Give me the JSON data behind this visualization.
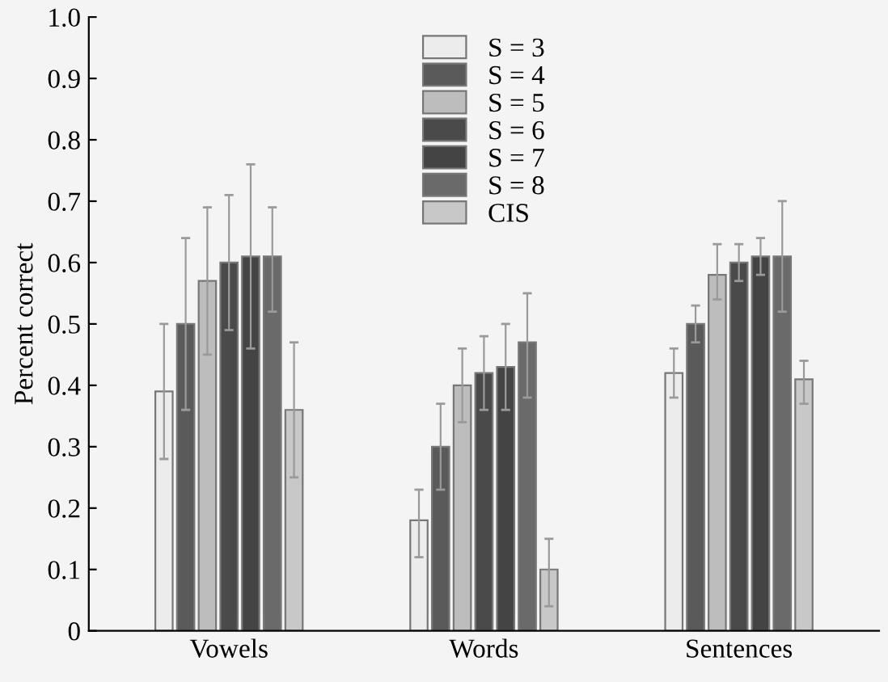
{
  "chart_data": {
    "type": "bar",
    "ylabel": "Percent correct",
    "categories": [
      "Vowels",
      "Words",
      "Sentences"
    ],
    "ylim": [
      0,
      1.0
    ],
    "yticks": [
      {
        "value": 0,
        "label": "0"
      },
      0.1,
      0.2,
      0.3,
      0.4,
      0.5,
      0.6,
      0.7,
      0.8,
      0.9,
      {
        "value": 1.0,
        "label": "1.0"
      }
    ],
    "grid": false,
    "legend": "top",
    "series": [
      {
        "name": "S = 3",
        "color": "#ececec",
        "values": [
          0.39,
          0.18,
          0.42
        ],
        "errors": [
          [
            0.28,
            0.5
          ],
          [
            0.12,
            0.23
          ],
          [
            0.38,
            0.46
          ]
        ]
      },
      {
        "name": "S = 4",
        "color": "#5a5a5a",
        "values": [
          0.5,
          0.3,
          0.5
        ],
        "errors": [
          [
            0.36,
            0.64
          ],
          0.07,
          0.03
        ]
      },
      {
        "name": "S = 5",
        "color": "#bdbdbd",
        "values": [
          0.57,
          0.4,
          0.58
        ],
        "errors": [
          [
            0.45,
            0.69
          ],
          [
            0.34,
            0.46
          ],
          [
            0.54,
            0.63
          ]
        ]
      },
      {
        "name": "S = 6",
        "color": "#4a4a4a",
        "values": [
          0.6,
          0.42,
          0.6
        ],
        "errors": [
          0.11,
          0.06,
          0.03
        ]
      },
      {
        "name": "S = 7",
        "color": "#444444",
        "values": [
          0.61,
          0.43,
          0.61
        ],
        "errors": [
          0.15,
          0.07,
          0.03
        ]
      },
      {
        "name": "S = 8",
        "color": "#6a6a6a",
        "values": [
          0.61,
          0.47,
          0.61
        ],
        "errors": [
          [
            0.52,
            0.69
          ],
          [
            0.38,
            0.55
          ],
          0.09
        ]
      },
      {
        "name": "CIS",
        "color": "#c8c8c8",
        "values": [
          0.36,
          0.1,
          0.41
        ],
        "errors": [
          [
            0.25,
            0.47
          ],
          [
            0.04,
            0.15
          ],
          [
            0.37,
            0.44
          ]
        ]
      }
    ]
  }
}
